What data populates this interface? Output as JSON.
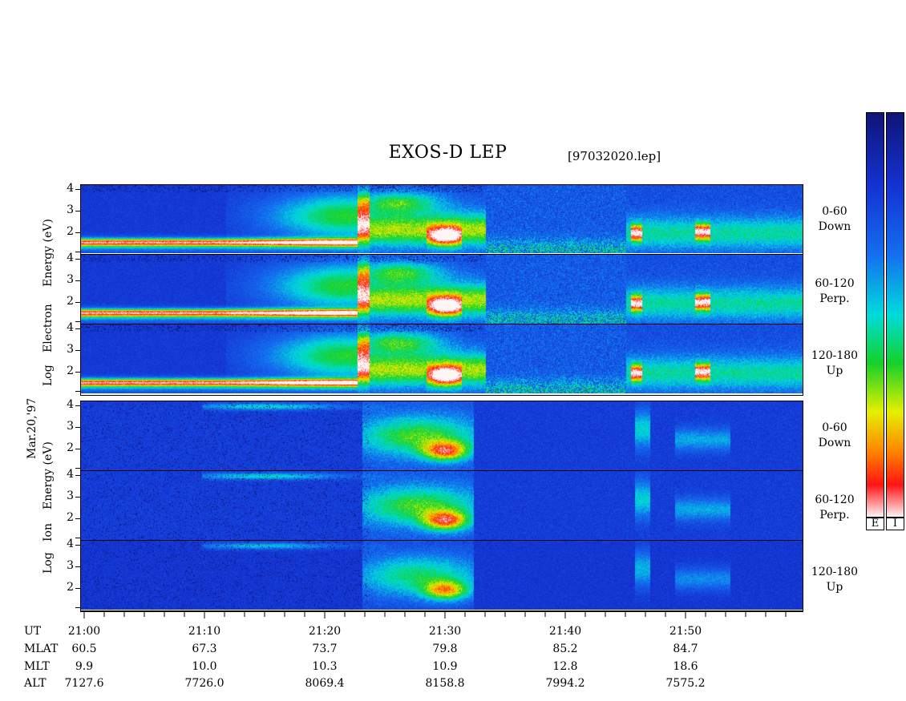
{
  "header": {
    "title": "EXOS-D LEP",
    "file": "[97032020.lep]"
  },
  "date_label": "Mar.20,'97",
  "colors": {
    "background_dark": "#000066",
    "low": "#1030c0",
    "mid": "#00e0e0",
    "green": "#10d010",
    "yellow": "#f0f000",
    "red": "#ff1010",
    "white": "#ffffff"
  },
  "colorbars": {
    "electron_label": "E",
    "ion_label": "I"
  },
  "chart_data": {
    "type": "heatmap",
    "x_unit": "UT",
    "x_ticks": [
      "21:00",
      "21:10",
      "21:20",
      "21:30",
      "21:40",
      "21:50"
    ],
    "x_range": [
      "21:00",
      "21:59"
    ],
    "y_ticks": [
      "4",
      "3",
      "2"
    ],
    "y_ticks_last": [
      "4",
      "3",
      "2"
    ],
    "electron_label": {
      "log": "Log",
      "species": "Electron",
      "energy": "Energy",
      "unit": "(eV)"
    },
    "ion_label": {
      "log": "Log",
      "species": "Ion",
      "energy": "Energy",
      "unit": "(eV)"
    },
    "electron_panels": [
      {
        "angle": "0-60",
        "direction": "Down"
      },
      {
        "angle": "60-120",
        "direction": "Perp."
      },
      {
        "angle": "120-180",
        "direction": "Up"
      }
    ],
    "ion_panels": [
      {
        "angle": "0-60",
        "direction": "Down"
      },
      {
        "angle": "60-120",
        "direction": "Perp."
      },
      {
        "angle": "120-180",
        "direction": "Up"
      }
    ],
    "ephemeris": {
      "rows": [
        {
          "label": "UT",
          "values": [
            "21:00",
            "21:10",
            "21:20",
            "21:30",
            "21:40",
            "21:50"
          ]
        },
        {
          "label": "MLAT",
          "values": [
            "60.5",
            "67.3",
            "73.7",
            "79.8",
            "85.2",
            "84.7"
          ]
        },
        {
          "label": "MLT",
          "values": [
            "9.9",
            "10.0",
            "10.3",
            "10.9",
            "12.8",
            "18.6"
          ]
        },
        {
          "label": "ALT",
          "values": [
            "7127.6",
            "7726.0",
            "8069.4",
            "8158.8",
            "7994.2",
            "7575.2"
          ]
        }
      ]
    }
  }
}
